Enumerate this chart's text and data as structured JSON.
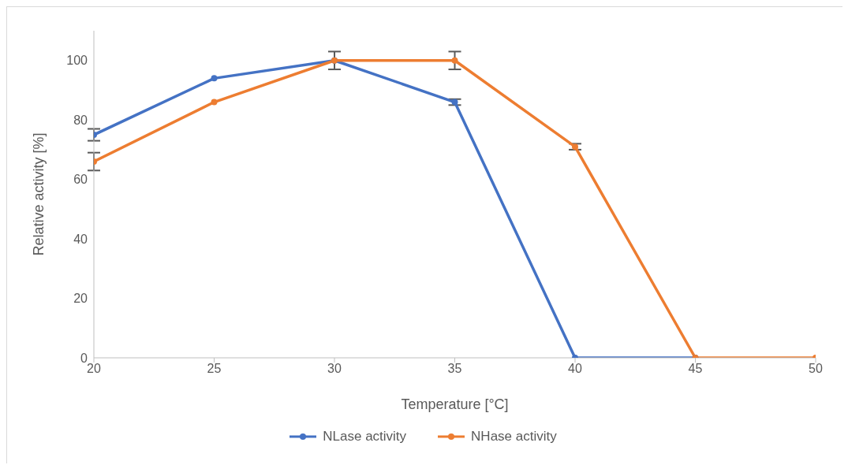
{
  "chart_data": {
    "type": "line",
    "xlabel": "Temperature [°C]",
    "ylabel": "Relative activity [%]",
    "x": [
      20,
      25,
      30,
      35,
      40,
      45,
      50
    ],
    "series": [
      {
        "name": "NLase activity",
        "color": "#4472c4",
        "values": [
          75,
          94,
          100,
          86,
          0,
          0,
          null
        ],
        "errors": [
          2,
          null,
          null,
          1,
          null,
          null,
          null
        ]
      },
      {
        "name": "NHase activity",
        "color": "#ed7d31",
        "values": [
          66,
          86,
          100,
          100,
          71,
          0,
          0
        ],
        "errors": [
          3,
          null,
          3,
          3,
          1,
          null,
          null
        ]
      }
    ],
    "xlim": [
      20,
      50
    ],
    "xticks": [
      20,
      25,
      30,
      35,
      40,
      45,
      50
    ],
    "ylim": [
      0,
      110
    ],
    "yticks": [
      0,
      20,
      40,
      60,
      80,
      100
    ],
    "grid": false,
    "legend": "bottom",
    "marker": "circle",
    "line_style": "solid"
  }
}
